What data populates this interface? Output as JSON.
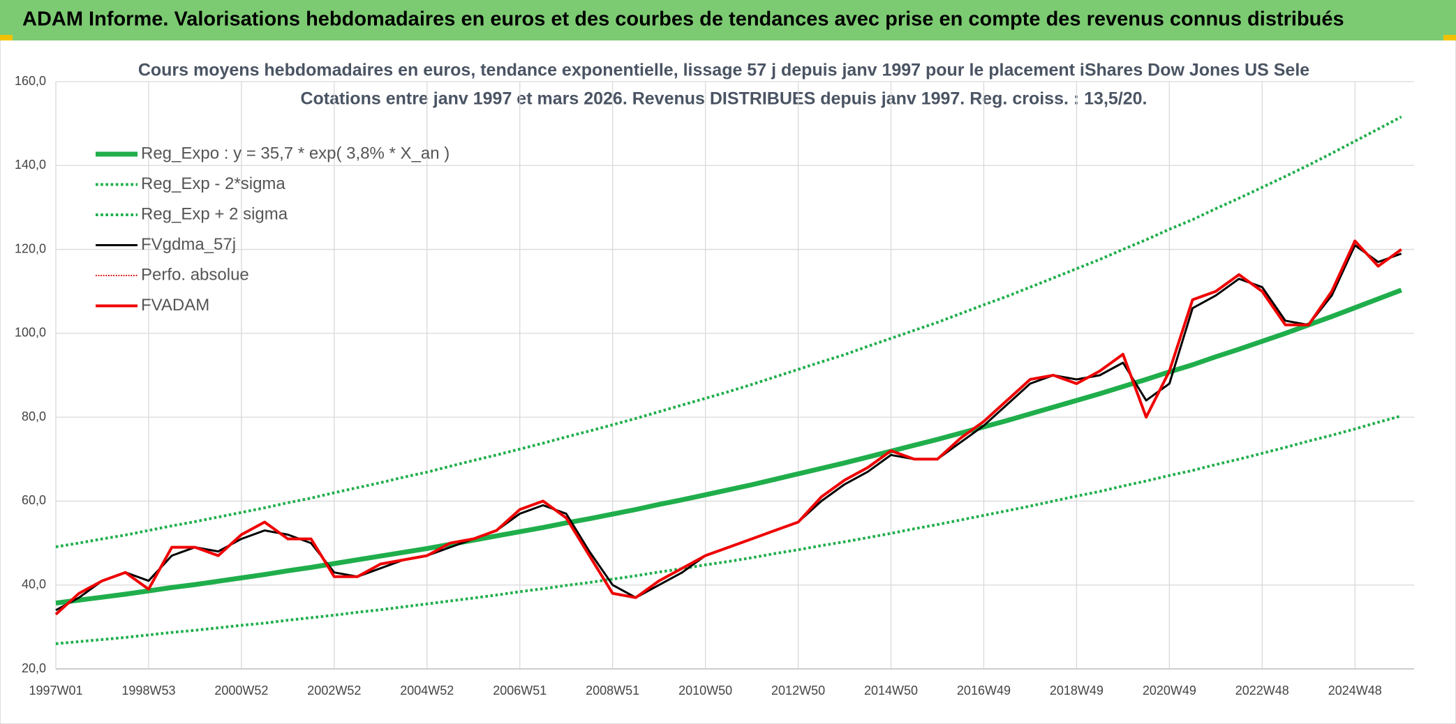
{
  "header": {
    "title": "ADAM Informe. Valorisations hebdomadaires en euros et des courbes de tendances avec prise en compte des revenus connus distribués"
  },
  "chart_data": {
    "type": "line",
    "title": "Cours moyens hebdomadaires en euros, tendance exponentielle, lissage 57 j depuis janv 1997 pour le placement iShares Dow Jones US Sele",
    "subtitle": "Cotations entre janv 1997 et mars 2026. Revenus DISTRIBUES depuis janv 1997. Reg. croiss. : 13,5/20.",
    "categories": [
      "1997W01",
      null,
      null,
      null,
      "1998W53",
      null,
      null,
      null,
      "2000W52",
      null,
      null,
      null,
      "2002W52",
      null,
      null,
      null,
      "2004W52",
      null,
      null,
      null,
      "2006W51",
      null,
      null,
      null,
      "2008W51",
      null,
      null,
      null,
      "2010W50",
      null,
      null,
      null,
      "2012W50",
      null,
      null,
      null,
      "2014W50",
      null,
      null,
      null,
      "2016W49",
      null,
      null,
      null,
      "2018W49",
      null,
      null,
      null,
      "2020W49",
      null,
      null,
      null,
      "2022W48",
      null,
      null,
      null,
      "2024W48",
      null,
      null
    ],
    "ylim": [
      20,
      160
    ],
    "yticks": [
      {
        "value": 20,
        "label": "20,0"
      },
      {
        "value": 40,
        "label": "40,0"
      },
      {
        "value": 60,
        "label": "60,0"
      },
      {
        "value": 80,
        "label": "80,0"
      },
      {
        "value": 100,
        "label": "100,0"
      },
      {
        "value": 120,
        "label": "120,0"
      },
      {
        "value": 140,
        "label": "140,0"
      },
      {
        "value": 160,
        "label": "160,0"
      }
    ],
    "grid": true,
    "legend": "top-left",
    "series": [
      {
        "name": "Reg_Expo : y = 35,7 * exp( 3,8% *  X_an )",
        "color": "#1fae4b",
        "style": "solid",
        "width": 7,
        "values": [
          35.7,
          36.4,
          37.1,
          37.8,
          38.6,
          39.4,
          40.1,
          40.9,
          41.7,
          42.5,
          43.4,
          44.2,
          45.1,
          46.0,
          46.9,
          47.8,
          48.7,
          49.7,
          50.7,
          51.7,
          52.7,
          53.7,
          54.8,
          55.8,
          56.9,
          58.0,
          59.2,
          60.3,
          61.5,
          62.7,
          63.9,
          65.2,
          66.5,
          67.8,
          69.1,
          70.5,
          71.9,
          73.3,
          74.7,
          76.2,
          77.7,
          79.2,
          80.8,
          82.4,
          84.0,
          85.6,
          87.3,
          89.0,
          90.8,
          92.5,
          94.4,
          96.2,
          98.1,
          100.0,
          102.0,
          104.0,
          106.1,
          108.2,
          110.3
        ]
      },
      {
        "name": "Reg_Exp - 2*sigma",
        "color": "#1fae4b",
        "style": "dotted",
        "width": 4,
        "values": [
          26.0,
          26.5,
          27.0,
          27.5,
          28.1,
          28.7,
          29.2,
          29.8,
          30.4,
          30.9,
          31.6,
          32.2,
          32.8,
          33.5,
          34.1,
          34.8,
          35.5,
          36.2,
          36.9,
          37.6,
          38.4,
          39.1,
          39.9,
          40.6,
          41.4,
          42.2,
          43.1,
          43.9,
          44.8,
          45.6,
          46.5,
          47.5,
          48.4,
          49.4,
          50.3,
          51.3,
          52.3,
          53.4,
          54.4,
          55.5,
          56.6,
          57.7,
          58.8,
          60.0,
          61.2,
          62.3,
          63.6,
          64.8,
          66.1,
          67.3,
          68.7,
          70.0,
          71.4,
          72.8,
          74.3,
          75.7,
          77.2,
          78.8,
          80.3
        ]
      },
      {
        "name": "Reg_Exp + 2 sigma",
        "color": "#1fae4b",
        "style": "dotted",
        "width": 4,
        "values": [
          49.1,
          50.0,
          51.0,
          51.9,
          53.0,
          54.1,
          55.1,
          56.2,
          57.3,
          58.4,
          59.6,
          60.7,
          62.0,
          63.2,
          64.4,
          65.7,
          66.9,
          68.3,
          69.7,
          71.0,
          72.4,
          73.8,
          75.3,
          76.7,
          78.2,
          79.7,
          81.3,
          82.9,
          84.5,
          86.1,
          87.8,
          89.6,
          91.4,
          93.2,
          94.9,
          96.9,
          98.8,
          100.7,
          102.6,
          104.7,
          106.8,
          108.8,
          111.0,
          113.2,
          115.4,
          117.6,
          120.0,
          122.3,
          124.8,
          127.1,
          129.7,
          132.2,
          134.8,
          137.4,
          140.1,
          142.9,
          145.8,
          148.7,
          151.6
        ]
      },
      {
        "name": "FVgdma_57j",
        "color": "#000000",
        "style": "solid",
        "width": 3,
        "values": [
          34,
          37,
          41,
          43,
          41,
          47,
          49,
          48,
          51,
          53,
          52,
          50,
          43,
          42,
          44,
          46,
          47,
          49,
          51,
          53,
          57,
          59,
          57,
          48,
          40,
          37,
          40,
          43,
          47,
          49,
          51,
          53,
          55,
          60,
          64,
          67,
          71,
          70,
          70,
          74,
          78,
          83,
          88,
          90,
          89,
          90,
          93,
          84,
          88,
          106,
          109,
          113,
          111,
          103,
          102,
          109,
          121,
          117,
          119
        ]
      },
      {
        "name": "Perfo. absolue",
        "color": "#e00000",
        "style": "dotted",
        "width": 2,
        "values": [
          null,
          null,
          null,
          null,
          null,
          null,
          null,
          null,
          null,
          null,
          null,
          null,
          null,
          null,
          null,
          null,
          null,
          null,
          null,
          null,
          null,
          null,
          null,
          null,
          null,
          null,
          null,
          null,
          null,
          null,
          null,
          null,
          null,
          null,
          null,
          null,
          null,
          null,
          null,
          null,
          null,
          null,
          null,
          null,
          null,
          null,
          null,
          null,
          null,
          null,
          null,
          null,
          null,
          null,
          null,
          null,
          null,
          null,
          null
        ]
      },
      {
        "name": "FVADAM",
        "color": "#ee0000",
        "style": "solid",
        "width": 4,
        "values": [
          33,
          38,
          41,
          43,
          39,
          49,
          49,
          47,
          52,
          55,
          51,
          51,
          42,
          42,
          45,
          46,
          47,
          50,
          51,
          53,
          58,
          60,
          56,
          47,
          38,
          37,
          41,
          44,
          47,
          49,
          51,
          53,
          55,
          61,
          65,
          68,
          72,
          70,
          70,
          75,
          79,
          84,
          89,
          90,
          88,
          91,
          95,
          80,
          91,
          108,
          110,
          114,
          110,
          102,
          102,
          110,
          122,
          116,
          120
        ]
      }
    ]
  }
}
